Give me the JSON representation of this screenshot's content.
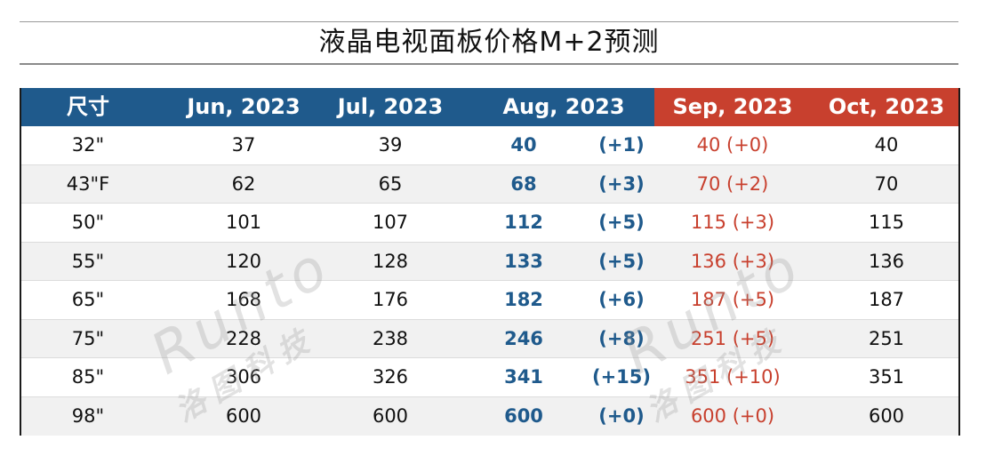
{
  "title": "液晶电视面板价格M+2预测",
  "headers": [
    "尺寸",
    "Jun, 2023",
    "Jul, 2023",
    "Aug, 2023",
    "Sep, 2023",
    "Oct, 2023"
  ],
  "rows": [
    {
      "size": "32\"",
      "jun": "37",
      "jul": "39",
      "aug": "40",
      "aug_delta": "(+1)",
      "sep": "40 (+0)",
      "oct": "40"
    },
    {
      "size": "43\"F",
      "jun": "62",
      "jul": "65",
      "aug": "68",
      "aug_delta": "(+3)",
      "sep": "70 (+2)",
      "oct": "70"
    },
    {
      "size": "50\"",
      "jun": "101",
      "jul": "107",
      "aug": "112",
      "aug_delta": "(+5)",
      "sep": "115 (+3)",
      "oct": "115"
    },
    {
      "size": "55\"",
      "jun": "120",
      "jul": "128",
      "aug": "133",
      "aug_delta": "(+5)",
      "sep": "136 (+3)",
      "oct": "136"
    },
    {
      "size": "65\"",
      "jun": "168",
      "jul": "176",
      "aug": "182",
      "aug_delta": "(+6)",
      "sep": "187 (+5)",
      "oct": "187"
    },
    {
      "size": "75\"",
      "jun": "228",
      "jul": "238",
      "aug": "246",
      "aug_delta": "(+8)",
      "sep": "251 (+5)",
      "oct": "251"
    },
    {
      "size": "85\"",
      "jun": "306",
      "jul": "326",
      "aug": "341",
      "aug_delta": "(+15)",
      "sep": "351 (+10)",
      "oct": "351"
    },
    {
      "size": "98\"",
      "jun": "600",
      "jul": "600",
      "aug": "600",
      "aug_delta": "(+0)",
      "sep": "600 (+0)",
      "oct": "600"
    }
  ],
  "watermark": {
    "brand": "Runto",
    "cn": "洛图科技"
  },
  "colors": {
    "header_blue": "#1f5a8c",
    "header_red": "#c8402e",
    "aug_text": "#1f5a8c",
    "sep_text": "#c8402e"
  }
}
